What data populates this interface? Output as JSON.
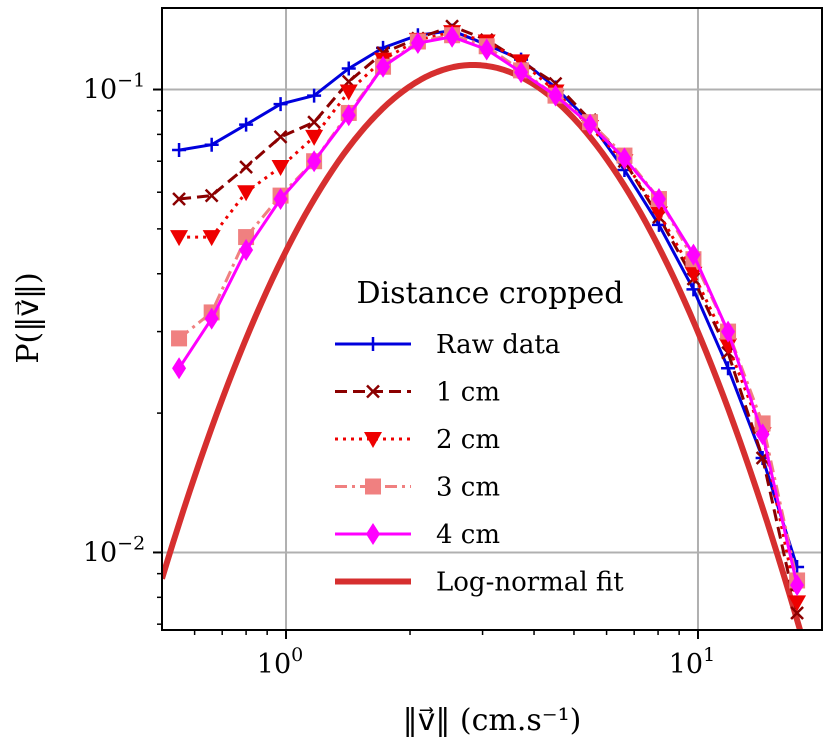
{
  "chart_data": {
    "type": "line",
    "xscale": "log",
    "yscale": "log",
    "xlim": [
      0.5,
      20
    ],
    "ylim": [
      0.0068,
      0.15
    ],
    "grid": true,
    "xlabel": "‖v⃗‖ (cm.s⁻¹)",
    "ylabel": "P(‖v⃗‖)",
    "x_ticks": [
      {
        "value": 1,
        "base": "10",
        "exp": "0"
      },
      {
        "value": 10,
        "base": "10",
        "exp": "1"
      }
    ],
    "y_ticks": [
      {
        "value": 0.01,
        "base": "10",
        "exp": "−2"
      },
      {
        "value": 0.1,
        "base": "10",
        "exp": "−1"
      }
    ],
    "legend": {
      "title": "Distance cropped",
      "position": "center-right"
    },
    "series": [
      {
        "name": "Raw data",
        "color": "#0000dd",
        "dash": "solid",
        "marker": "plus",
        "x": [
          0.55,
          0.66,
          0.8,
          0.97,
          1.17,
          1.42,
          1.72,
          2.09,
          2.53,
          3.07,
          3.72,
          4.51,
          5.47,
          6.63,
          8.04,
          9.75,
          11.83,
          14.35,
          17.4
        ],
        "y": [
          0.074,
          0.076,
          0.084,
          0.093,
          0.097,
          0.111,
          0.123,
          0.131,
          0.134,
          0.125,
          0.116,
          0.101,
          0.085,
          0.067,
          0.051,
          0.037,
          0.025,
          0.016,
          0.0093
        ]
      },
      {
        "name": "1 cm",
        "color": "#8b0000",
        "dash": "dashed",
        "marker": "x",
        "x": [
          0.55,
          0.66,
          0.8,
          0.97,
          1.17,
          1.42,
          1.72,
          2.09,
          2.53,
          3.07,
          3.72,
          4.51,
          5.47,
          6.63,
          8.04,
          9.75,
          11.83,
          14.35,
          17.4
        ],
        "y": [
          0.058,
          0.059,
          0.068,
          0.079,
          0.085,
          0.104,
          0.12,
          0.129,
          0.137,
          0.128,
          0.115,
          0.103,
          0.086,
          0.07,
          0.053,
          0.039,
          0.027,
          0.016,
          0.0074
        ]
      },
      {
        "name": "2 cm",
        "color": "#ee0000",
        "dash": "dotted",
        "marker": "triangle-down",
        "x": [
          0.55,
          0.66,
          0.8,
          0.97,
          1.17,
          1.42,
          1.72,
          2.09,
          2.53,
          3.07,
          3.72,
          4.51,
          5.47,
          6.63,
          8.04,
          9.75,
          11.83,
          14.35,
          17.4
        ],
        "y": [
          0.048,
          0.048,
          0.06,
          0.068,
          0.079,
          0.099,
          0.116,
          0.128,
          0.133,
          0.127,
          0.115,
          0.099,
          0.083,
          0.07,
          0.054,
          0.04,
          0.028,
          0.018,
          0.0078
        ]
      },
      {
        "name": "3 cm",
        "color": "#f08080",
        "dash": "dashdot",
        "marker": "square",
        "x": [
          0.55,
          0.66,
          0.8,
          0.97,
          1.17,
          1.42,
          1.72,
          2.09,
          2.53,
          3.07,
          3.72,
          4.51,
          5.47,
          6.63,
          8.04,
          9.75,
          11.83,
          14.35,
          17.4
        ],
        "y": [
          0.029,
          0.033,
          0.048,
          0.059,
          0.07,
          0.089,
          0.112,
          0.127,
          0.131,
          0.124,
          0.11,
          0.097,
          0.085,
          0.072,
          0.058,
          0.043,
          0.03,
          0.019,
          0.0087
        ]
      },
      {
        "name": "4 cm",
        "color": "#ff00ff",
        "dash": "solid",
        "marker": "thin-diamond",
        "x": [
          0.55,
          0.66,
          0.8,
          0.97,
          1.17,
          1.42,
          1.72,
          2.09,
          2.53,
          3.07,
          3.72,
          4.51,
          5.47,
          6.63,
          8.04,
          9.75,
          11.83,
          14.35,
          17.4
        ],
        "y": [
          0.025,
          0.032,
          0.045,
          0.058,
          0.07,
          0.088,
          0.112,
          0.126,
          0.13,
          0.122,
          0.109,
          0.097,
          0.084,
          0.071,
          0.058,
          0.044,
          0.03,
          0.018,
          0.0085
        ]
      },
      {
        "name": "Log-normal fit",
        "color": "#d62f2f",
        "dash": "solid",
        "marker": "none",
        "fit": {
          "amplitude": 0.113,
          "center": 2.85,
          "sigma": 0.77
        },
        "x_range": [
          0.5,
          20
        ]
      }
    ]
  }
}
